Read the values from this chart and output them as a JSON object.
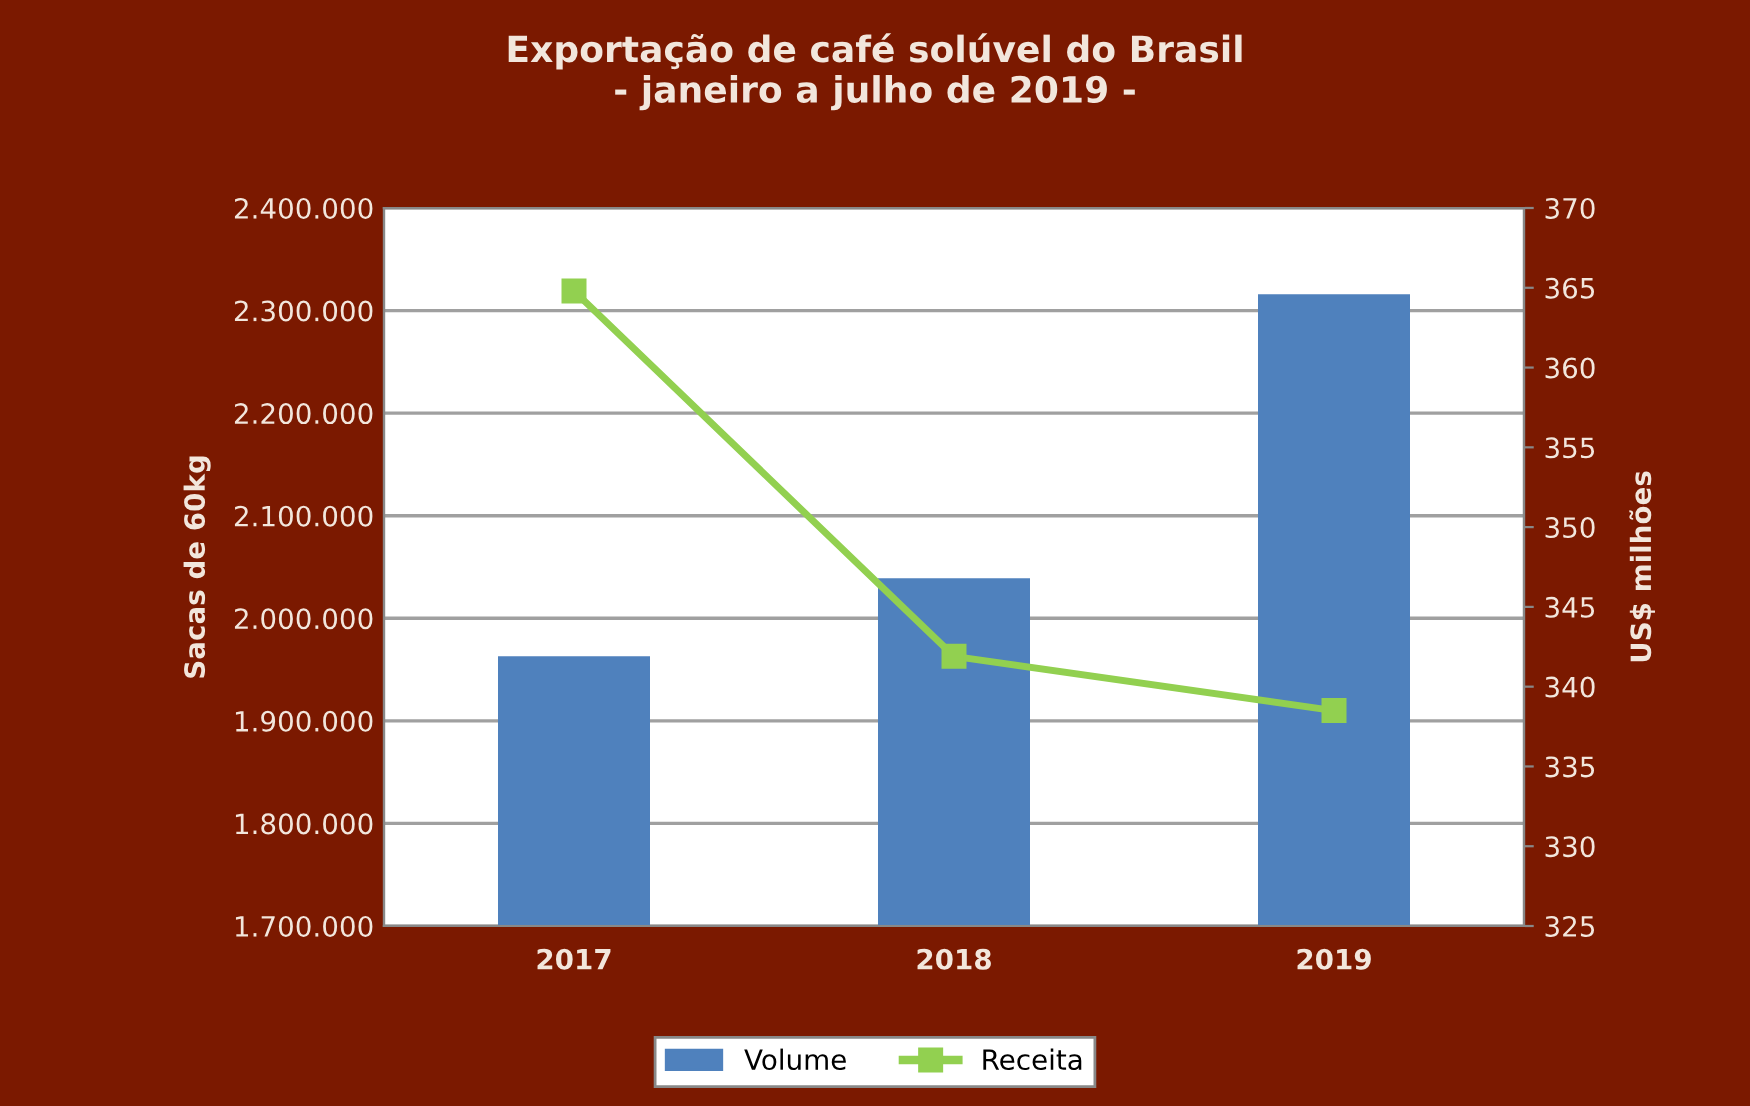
{
  "chart_data": {
    "type": "bar",
    "title": "Exportação de café solúvel do Brasil\n- janeiro a julho de 2019 -",
    "ylabel": "Sacas de 60kg",
    "y2label": "US$ milhões",
    "categories": [
      "2017",
      "2018",
      "2019"
    ],
    "series": [
      {
        "name": "Volume",
        "color": "#4f81bd",
        "values": [
          1963000,
          2039000,
          2316000
        ]
      },
      {
        "name": "Receita",
        "type": "line",
        "axis": "y2",
        "color": "#92d050",
        "marker": "square",
        "values": [
          364.8,
          341.9,
          338.5
        ]
      }
    ],
    "ylim": [
      1700000,
      2400000
    ],
    "yticks": [
      {
        "value": 1700000,
        "label": "1.700.000"
      },
      {
        "value": 1800000,
        "label": "1.800.000"
      },
      {
        "value": 1900000,
        "label": "1.900.000"
      },
      {
        "value": 2000000,
        "label": "2.000.000"
      },
      {
        "value": 2100000,
        "label": "2.100.000"
      },
      {
        "value": 2200000,
        "label": "2.200.000"
      },
      {
        "value": 2300000,
        "label": "2.300.000"
      },
      {
        "value": 2400000,
        "label": "2.400.000"
      }
    ],
    "y2lim": [
      325,
      370
    ],
    "y2ticks": [
      325,
      330,
      335,
      340,
      345,
      350,
      355,
      360,
      365,
      370
    ],
    "grid": "y",
    "legend": "bottom"
  }
}
